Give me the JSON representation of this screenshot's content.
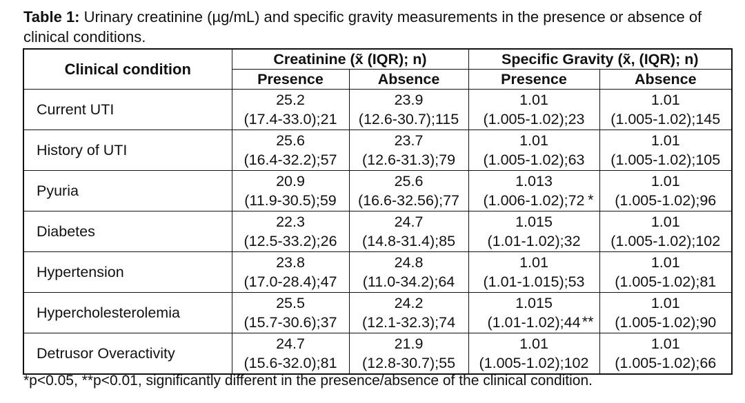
{
  "caption": {
    "label": "Table 1:",
    "text": "Urinary creatinine (µg/mL) and specific gravity measurements in the presence or absence of clinical conditions."
  },
  "table": {
    "corner": "Clinical condition",
    "groups": [
      "Creatinine (x̃ (IQR); n)",
      "Specific Gravity (x̃, (IQR); n)"
    ],
    "subheaders": [
      "Presence",
      "Absence",
      "Presence",
      "Absence"
    ],
    "rows": [
      {
        "condition": "Current  UTI",
        "cells": [
          {
            "median": "25.2",
            "range": "(17.4-33.0);21"
          },
          {
            "median": "23.9",
            "range": "(12.6-30.7);115"
          },
          {
            "median": "1.01",
            "range": "(1.005-1.02);23"
          },
          {
            "median": "1.01",
            "range": "(1.005-1.02);145"
          }
        ]
      },
      {
        "condition": "History of UTI",
        "cells": [
          {
            "median": "25.6",
            "range": "(16.4-32.2);57"
          },
          {
            "median": "23.7",
            "range": "(12.6-31.3);79"
          },
          {
            "median": "1.01",
            "range": "(1.005-1.02);63"
          },
          {
            "median": "1.01",
            "range": "(1.005-1.02);105"
          }
        ]
      },
      {
        "condition": "Pyuria",
        "cells": [
          {
            "median": "20.9",
            "range": "(11.9-30.5);59"
          },
          {
            "median": "25.6",
            "range": "(16.6-32.56);77"
          },
          {
            "median": "1.013",
            "range": "(1.006-1.02);72",
            "sig": "*"
          },
          {
            "median": "1.01",
            "range": "(1.005-1.02);96"
          }
        ]
      },
      {
        "condition": "Diabetes",
        "cells": [
          {
            "median": "22.3",
            "range": "(12.5-33.2);26"
          },
          {
            "median": "24.7",
            "range": "(14.8-31.4);85"
          },
          {
            "median": "1.015",
            "range": "(1.01-1.02);32"
          },
          {
            "median": "1.01",
            "range": "(1.005-1.02);102"
          }
        ]
      },
      {
        "condition": "Hypertension",
        "cells": [
          {
            "median": "23.8",
            "range": "(17.0-28.4);47"
          },
          {
            "median": "24.8",
            "range": "(11.0-34.2);64"
          },
          {
            "median": "1.01",
            "range": "(1.01-1.015);53"
          },
          {
            "median": "1.01",
            "range": "(1.005-1.02);81"
          }
        ]
      },
      {
        "condition": "Hypercholesterolemia",
        "cells": [
          {
            "median": "25.5",
            "range": "(15.7-30.6);37"
          },
          {
            "median": "24.2",
            "range": "(12.1-32.3);74"
          },
          {
            "median": "1.015",
            "range": "(1.01-1.02);44",
            "sig": "**"
          },
          {
            "median": "1.01",
            "range": "(1.005-1.02);90"
          }
        ]
      },
      {
        "condition": "Detrusor Overactivity",
        "cells": [
          {
            "median": "24.7",
            "range": "(15.6-32.0);81"
          },
          {
            "median": "21.9",
            "range": "(12.8-30.7);55"
          },
          {
            "median": "1.01",
            "range": "(1.005-1.02);102"
          },
          {
            "median": "1.01",
            "range": "(1.005-1.02);66"
          }
        ]
      }
    ]
  },
  "footnote": "*p<0.05, **p<0.01, significantly different in the presence/absence of the clinical condition."
}
